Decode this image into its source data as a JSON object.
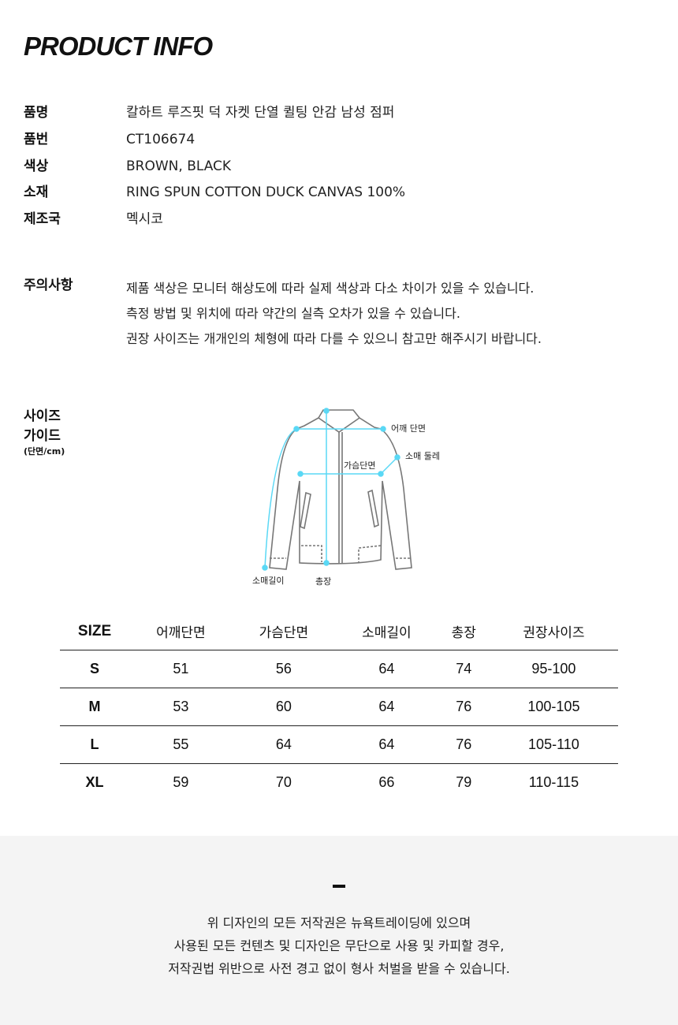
{
  "title": "PRODUCT INFO",
  "info": [
    {
      "k": "품명",
      "v": "칼하트 루즈핏 덕 자켓 단열 퀼팅 안감 남성 점퍼"
    },
    {
      "k": "품번",
      "v": "CT106674"
    },
    {
      "k": "색상",
      "v": "BROWN, BLACK"
    },
    {
      "k": "소재",
      "v": "RING SPUN COTTON DUCK CANVAS 100%"
    },
    {
      "k": "제조국",
      "v": "멕시코"
    }
  ],
  "notes": {
    "label": "주의사항",
    "lines": [
      "제품 색상은 모니터 해상도에 따라 실제 색상과 다소 차이가 있을 수 있습니다.",
      "측정 방법 및 위치에 따라 약간의 실측 오차가 있을 수 있습니다.",
      "권장 사이즈는 개개인의 체형에 따라 다를 수 있으니 참고만 해주시기 바랍니다."
    ]
  },
  "size_guide": {
    "label1": "사이즈",
    "label2": "가이드",
    "unit": "(단면/cm)",
    "diagram": {
      "shoulder": "어깨 단면",
      "sleeve_round": "소매 둘레",
      "chest": "가슴단면",
      "sleeve_length": "소매길이",
      "total": "총장"
    },
    "accent": "#5ad8f5"
  },
  "table": {
    "headers": [
      "SIZE",
      "어깨단면",
      "가슴단면",
      "소매길이",
      "총장",
      "권장사이즈"
    ],
    "rows": [
      [
        "S",
        "51",
        "56",
        "64",
        "74",
        "95-100"
      ],
      [
        "M",
        "53",
        "60",
        "64",
        "76",
        "100-105"
      ],
      [
        "L",
        "55",
        "64",
        "64",
        "76",
        "105-110"
      ],
      [
        "XL",
        "59",
        "70",
        "66",
        "79",
        "110-115"
      ]
    ]
  },
  "footer": {
    "lines": [
      "위 디자인의 모든 저작권은 뉴욕트레이딩에 있으며",
      "사용된 모든 컨텐츠 및 디자인은 무단으로 사용 및 카피할 경우,",
      "저작권법 위반으로 사전 경고 없이 형사 처벌을 받을 수 있습니다."
    ]
  }
}
